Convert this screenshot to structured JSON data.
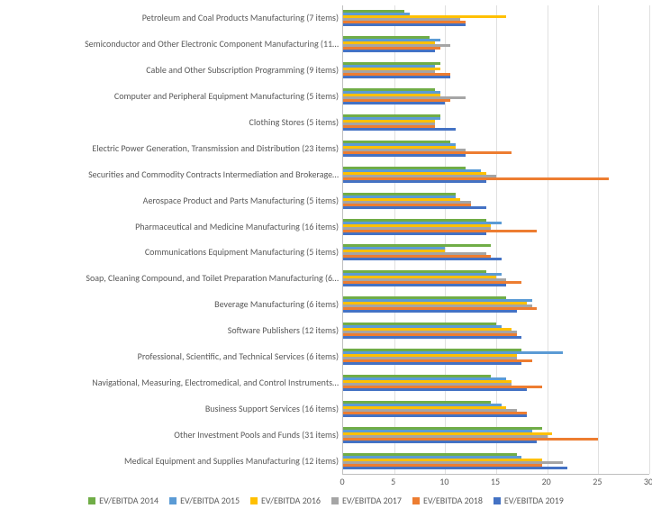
{
  "chart": {
    "type": "bar-horizontal-grouped",
    "background_color": "#ffffff",
    "grid_color": "#e0e0e0",
    "axis_color": "#bfbfbf",
    "text_color": "#595959",
    "label_fontsize": 10,
    "xlim": [
      0,
      30
    ],
    "xtick_step": 5,
    "xticks": [
      0,
      5,
      10,
      15,
      20,
      25,
      30
    ],
    "series": [
      {
        "key": "s2014",
        "label": "EV/EBITDA 2014",
        "color": "#70AD47"
      },
      {
        "key": "s2015",
        "label": "EV/EBITDA 2015",
        "color": "#5B9BD5"
      },
      {
        "key": "s2016",
        "label": "EV/EBITDA 2016",
        "color": "#FFC000"
      },
      {
        "key": "s2017",
        "label": "EV/EBITDA 2017",
        "color": "#A5A5A5"
      },
      {
        "key": "s2018",
        "label": "EV/EBITDA 2018",
        "color": "#ED7D31"
      },
      {
        "key": "s2019",
        "label": "EV/EBITDA 2019",
        "color": "#4472C4"
      }
    ],
    "categories": [
      {
        "label": "Petroleum and Coal Products Manufacturing (7 items)",
        "values": {
          "s2014": 6.0,
          "s2015": 6.5,
          "s2016": 16.0,
          "s2017": 11.5,
          "s2018": 12.0,
          "s2019": 12.0
        }
      },
      {
        "label": "Semiconductor and Other Electronic Component Manufacturing (11…",
        "values": {
          "s2014": 8.5,
          "s2015": 9.5,
          "s2016": 9.0,
          "s2017": 10.5,
          "s2018": 9.5,
          "s2019": 9.0
        }
      },
      {
        "label": "Cable and Other Subscription Programming (9 items)",
        "values": {
          "s2014": 9.5,
          "s2015": 9.0,
          "s2016": 9.5,
          "s2017": 9.0,
          "s2018": 10.5,
          "s2019": 10.5
        }
      },
      {
        "label": "Computer and Peripheral Equipment Manufacturing (5 items)",
        "values": {
          "s2014": 9.0,
          "s2015": 9.5,
          "s2016": 9.5,
          "s2017": 12.0,
          "s2018": 10.5,
          "s2019": 10.0
        }
      },
      {
        "label": "Clothing Stores (5 items)",
        "values": {
          "s2014": 9.5,
          "s2015": 9.5,
          "s2016": 9.0,
          "s2017": 9.0,
          "s2018": 9.0,
          "s2019": 11.0
        }
      },
      {
        "label": "Electric Power Generation, Transmission and Distribution (23 items)",
        "values": {
          "s2014": 10.5,
          "s2015": 11.0,
          "s2016": 11.0,
          "s2017": 12.0,
          "s2018": 16.5,
          "s2019": 12.0
        }
      },
      {
        "label": "Securities and Commodity Contracts Intermediation and Brokerage…",
        "values": {
          "s2014": 12.0,
          "s2015": 13.5,
          "s2016": 14.0,
          "s2017": 15.0,
          "s2018": 26.0,
          "s2019": 14.0
        }
      },
      {
        "label": "Aerospace Product and Parts Manufacturing (5 items)",
        "values": {
          "s2014": 11.0,
          "s2015": 11.0,
          "s2016": 11.5,
          "s2017": 12.5,
          "s2018": 12.5,
          "s2019": 14.0
        }
      },
      {
        "label": "Pharmaceutical and Medicine Manufacturing (16 items)",
        "values": {
          "s2014": 14.0,
          "s2015": 15.5,
          "s2016": 14.5,
          "s2017": 14.5,
          "s2018": 19.0,
          "s2019": 14.0
        }
      },
      {
        "label": "Communications Equipment Manufacturing (5 items)",
        "values": {
          "s2014": 14.5,
          "s2015": 10.0,
          "s2016": 10.0,
          "s2017": 14.0,
          "s2018": 14.5,
          "s2019": 15.5
        }
      },
      {
        "label": "Soap, Cleaning Compound, and Toilet Preparation Manufacturing (6…",
        "values": {
          "s2014": 14.0,
          "s2015": 15.5,
          "s2016": 15.0,
          "s2017": 16.0,
          "s2018": 17.5,
          "s2019": 16.0
        }
      },
      {
        "label": "Beverage Manufacturing (6 items)",
        "values": {
          "s2014": 16.0,
          "s2015": 18.5,
          "s2016": 18.0,
          "s2017": 18.5,
          "s2018": 19.0,
          "s2019": 17.0
        }
      },
      {
        "label": "Software Publishers (12 items)",
        "values": {
          "s2014": 15.0,
          "s2015": 15.5,
          "s2016": 16.5,
          "s2017": 17.0,
          "s2018": 17.0,
          "s2019": 17.5
        }
      },
      {
        "label": "Professional, Scientific, and Technical Services (6 items)",
        "values": {
          "s2014": 17.5,
          "s2015": 21.5,
          "s2016": 17.0,
          "s2017": 17.0,
          "s2018": 18.5,
          "s2019": 17.5
        }
      },
      {
        "label": "Navigational, Measuring, Electromedical, and Control Instruments…",
        "values": {
          "s2014": 14.5,
          "s2015": 16.0,
          "s2016": 16.5,
          "s2017": 16.5,
          "s2018": 19.5,
          "s2019": 18.0
        }
      },
      {
        "label": "Business Support Services (16 items)",
        "values": {
          "s2014": 14.5,
          "s2015": 15.5,
          "s2016": 16.0,
          "s2017": 17.0,
          "s2018": 18.0,
          "s2019": 18.0
        }
      },
      {
        "label": "Other Investment Pools and Funds (31 items)",
        "values": {
          "s2014": 19.5,
          "s2015": 18.5,
          "s2016": 20.5,
          "s2017": 20.0,
          "s2018": 25.0,
          "s2019": 19.0
        }
      },
      {
        "label": "Medical Equipment and Supplies Manufacturing (12 items)",
        "values": {
          "s2014": 17.0,
          "s2015": 17.5,
          "s2016": 19.5,
          "s2017": 21.5,
          "s2018": 19.5,
          "s2019": 22.0
        }
      }
    ]
  }
}
